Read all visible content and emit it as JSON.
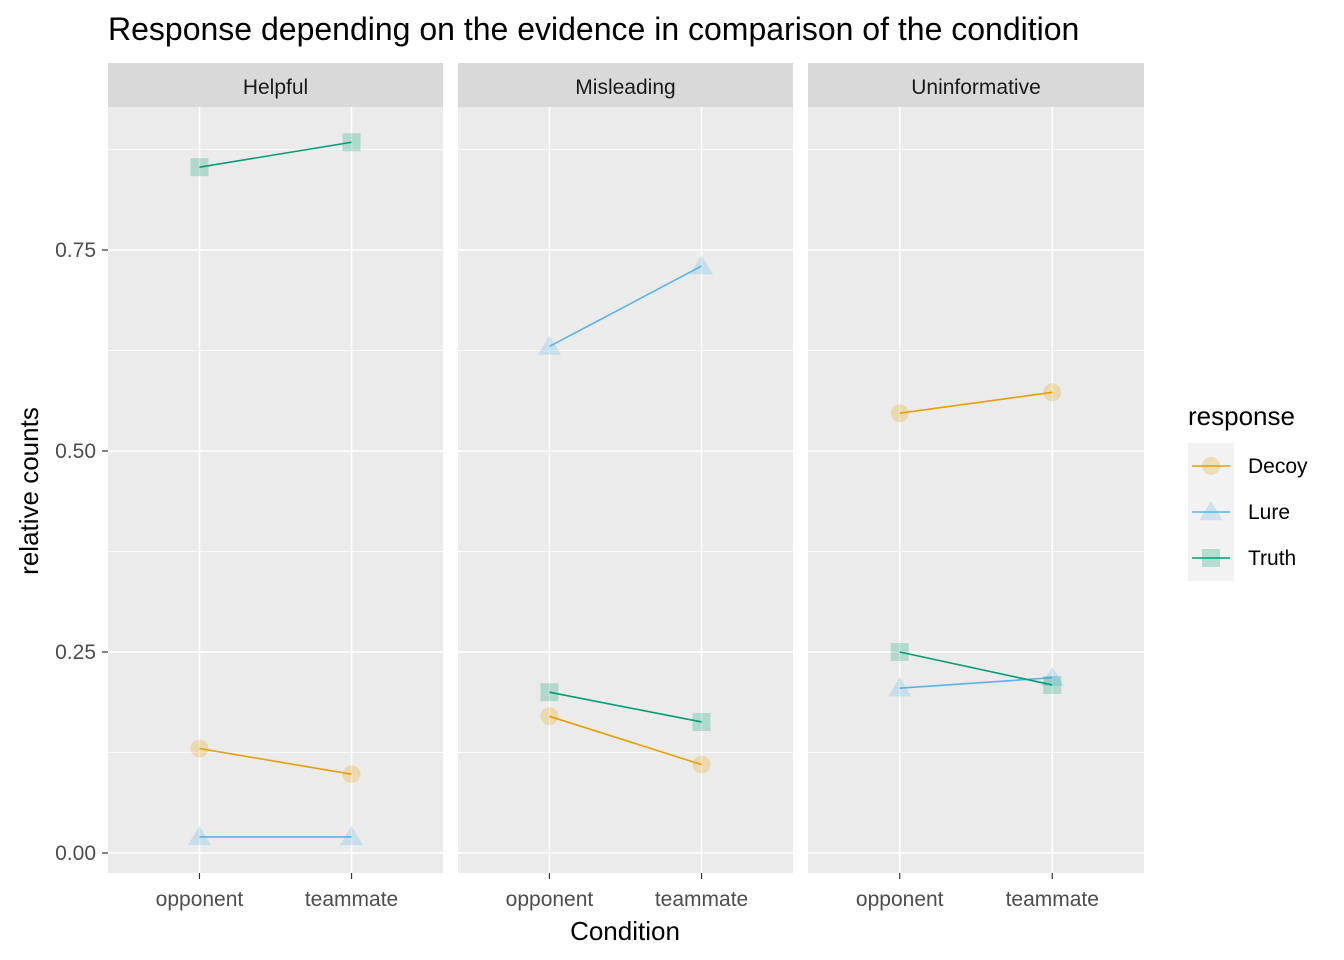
{
  "chart_data": {
    "type": "line",
    "title": "Response depending on the evidence in comparison of the condition",
    "xlabel": "Condition",
    "ylabel": "relative counts",
    "categories": [
      "opponent",
      "teammate"
    ],
    "y_ticks": [
      0.0,
      0.25,
      0.5,
      0.75
    ],
    "y_tick_labels": [
      "0.00",
      "0.25",
      "0.50",
      "0.75"
    ],
    "ylim": [
      -0.025,
      0.95
    ],
    "grid": true,
    "legend": {
      "title": "response",
      "position": "right",
      "entries": [
        {
          "name": "Decoy",
          "color": "#E69F00",
          "shape": "circle"
        },
        {
          "name": "Lure",
          "color": "#56B4E9",
          "shape": "triangle"
        },
        {
          "name": "Truth",
          "color": "#009E73",
          "shape": "square"
        }
      ]
    },
    "panels": [
      {
        "label": "Helpful",
        "series": [
          {
            "name": "Decoy",
            "values": [
              0.13,
              0.098
            ]
          },
          {
            "name": "Lure",
            "values": [
              0.02,
              0.02
            ]
          },
          {
            "name": "Truth",
            "values": [
              0.853,
              0.884
            ]
          }
        ]
      },
      {
        "label": "Misleading",
        "series": [
          {
            "name": "Decoy",
            "values": [
              0.17,
              0.11
            ]
          },
          {
            "name": "Lure",
            "values": [
              0.63,
              0.73
            ]
          },
          {
            "name": "Truth",
            "values": [
              0.2,
              0.163
            ]
          }
        ]
      },
      {
        "label": "Uninformative",
        "series": [
          {
            "name": "Decoy",
            "values": [
              0.547,
              0.573
            ]
          },
          {
            "name": "Lure",
            "values": [
              0.205,
              0.218
            ]
          },
          {
            "name": "Truth",
            "values": [
              0.25,
              0.209
            ]
          }
        ]
      }
    ]
  }
}
